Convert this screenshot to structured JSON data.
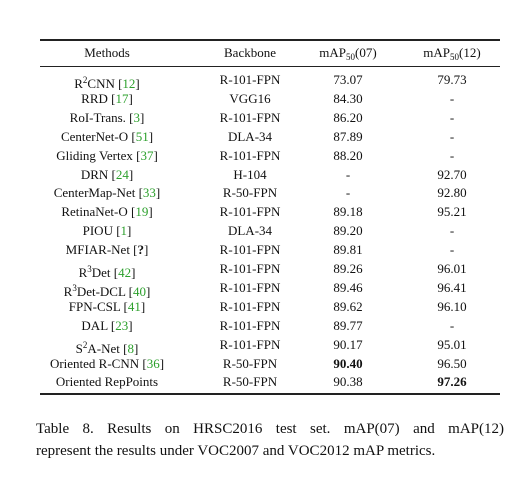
{
  "table": {
    "header": {
      "method": [
        {
          "text": "Methods"
        }
      ],
      "backbone": [
        {
          "text": "Backbone"
        }
      ],
      "map07": [
        {
          "text": "mAP"
        },
        {
          "text": "50",
          "style": "sub"
        },
        {
          "text": "(07)"
        }
      ],
      "map12": [
        {
          "text": "mAP"
        },
        {
          "text": "50",
          "style": "sub"
        },
        {
          "text": "(12)"
        }
      ]
    },
    "rows": [
      {
        "method": [
          {
            "text": "R"
          },
          {
            "text": "2",
            "style": "sup"
          },
          {
            "text": "CNN ["
          },
          {
            "text": "12",
            "style": "cite"
          },
          {
            "text": "]"
          }
        ],
        "backbone": "R-101-FPN",
        "map07": "73.07",
        "map12": "79.73"
      },
      {
        "method": [
          {
            "text": "RRD ["
          },
          {
            "text": "17",
            "style": "cite"
          },
          {
            "text": "]"
          }
        ],
        "backbone": "VGG16",
        "map07": "84.30",
        "map12": "-"
      },
      {
        "method": [
          {
            "text": "RoI-Trans. ["
          },
          {
            "text": "3",
            "style": "cite"
          },
          {
            "text": "]"
          }
        ],
        "backbone": "R-101-FPN",
        "map07": "86.20",
        "map12": "-"
      },
      {
        "method": [
          {
            "text": "CenterNet-O ["
          },
          {
            "text": "51",
            "style": "cite"
          },
          {
            "text": "]"
          }
        ],
        "backbone": "DLA-34",
        "map07": "87.89",
        "map12": "-"
      },
      {
        "method": [
          {
            "text": "Gliding Vertex ["
          },
          {
            "text": "37",
            "style": "cite"
          },
          {
            "text": "]"
          }
        ],
        "backbone": "R-101-FPN",
        "map07": "88.20",
        "map12": "-"
      },
      {
        "method": [
          {
            "text": "DRN ["
          },
          {
            "text": "24",
            "style": "cite"
          },
          {
            "text": "]"
          }
        ],
        "backbone": "H-104",
        "map07": "-",
        "map12": "92.70"
      },
      {
        "method": [
          {
            "text": "CenterMap-Net ["
          },
          {
            "text": "33",
            "style": "cite"
          },
          {
            "text": "]"
          }
        ],
        "backbone": "R-50-FPN",
        "map07": "-",
        "map12": "92.80"
      },
      {
        "method": [
          {
            "text": "RetinaNet-O ["
          },
          {
            "text": "19",
            "style": "cite"
          },
          {
            "text": "]"
          }
        ],
        "backbone": "R-101-FPN",
        "map07": "89.18",
        "map12": "95.21"
      },
      {
        "method": [
          {
            "text": "PIOU ["
          },
          {
            "text": "1",
            "style": "cite"
          },
          {
            "text": "]"
          }
        ],
        "backbone": "DLA-34",
        "map07": "89.20",
        "map12": "-"
      },
      {
        "method": [
          {
            "text": "MFIAR-Net ["
          },
          {
            "text": "?",
            "style": "bold"
          },
          {
            "text": "]"
          }
        ],
        "backbone": "R-101-FPN",
        "map07": "89.81",
        "map12": "-"
      },
      {
        "method": [
          {
            "text": "R"
          },
          {
            "text": "3",
            "style": "sup"
          },
          {
            "text": "Det ["
          },
          {
            "text": "42",
            "style": "cite"
          },
          {
            "text": "]"
          }
        ],
        "backbone": "R-101-FPN",
        "map07": "89.26",
        "map12": "96.01"
      },
      {
        "method": [
          {
            "text": "R"
          },
          {
            "text": "3",
            "style": "sup"
          },
          {
            "text": "Det-DCL ["
          },
          {
            "text": "40",
            "style": "cite"
          },
          {
            "text": "]"
          }
        ],
        "backbone": "R-101-FPN",
        "map07": "89.46",
        "map12": "96.41"
      },
      {
        "method": [
          {
            "text": "FPN-CSL ["
          },
          {
            "text": "41",
            "style": "cite"
          },
          {
            "text": "]"
          }
        ],
        "backbone": "R-101-FPN",
        "map07": "89.62",
        "map12": "96.10"
      },
      {
        "method": [
          {
            "text": "DAL ["
          },
          {
            "text": "23",
            "style": "cite"
          },
          {
            "text": "]"
          }
        ],
        "backbone": "R-101-FPN",
        "map07": "89.77",
        "map12": "-"
      },
      {
        "method": [
          {
            "text": "S"
          },
          {
            "text": "2",
            "style": "sup"
          },
          {
            "text": "A-Net ["
          },
          {
            "text": "8",
            "style": "cite"
          },
          {
            "text": "]"
          }
        ],
        "backbone": "R-101-FPN",
        "map07": "90.17",
        "map12": "95.01"
      },
      {
        "method": [
          {
            "text": "Oriented R-CNN ["
          },
          {
            "text": "36",
            "style": "cite"
          },
          {
            "text": "]"
          }
        ],
        "backbone": "R-50-FPN",
        "map07": "90.40",
        "map12": "96.50",
        "bold": "map07"
      },
      {
        "method": [
          {
            "text": "Oriented RepPoints"
          }
        ],
        "backbone": "R-50-FPN",
        "map07": "90.38",
        "map12": "97.26",
        "bold": "map12"
      }
    ]
  },
  "caption": {
    "lines": [
      "Table 8. Results on HRSC2016 test set. mAP(07) and mAP(12)",
      "represent the results under VOC2007 and VOC2012 mAP metrics."
    ]
  }
}
